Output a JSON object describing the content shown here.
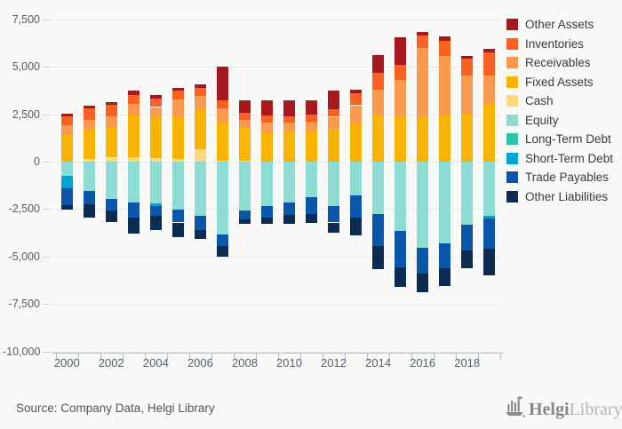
{
  "chart_data": {
    "type": "bar",
    "stacked": true,
    "title": "",
    "xlabel": "",
    "ylabel": "",
    "ylim": [
      -10000,
      7500
    ],
    "grid": true,
    "legend_position": "top-right",
    "x": [
      2000,
      2001,
      2002,
      2003,
      2004,
      2005,
      2006,
      2007,
      2008,
      2009,
      2010,
      2011,
      2012,
      2013,
      2014,
      2015,
      2016,
      2017,
      2018,
      2019
    ],
    "x_tick_labels": [
      "2000",
      "2002",
      "2004",
      "2006",
      "2008",
      "2010",
      "2012",
      "2014",
      "2016",
      "2018"
    ],
    "y_ticks": [
      {
        "label": "7,500",
        "value": 7500
      },
      {
        "label": "5,000",
        "value": 5000
      },
      {
        "label": "2,500",
        "value": 2500
      },
      {
        "label": "0",
        "value": 0
      },
      {
        "label": "-2,500",
        "value": -2500
      },
      {
        "label": "-5,000",
        "value": -5000
      },
      {
        "label": "-7,500",
        "value": -7500
      },
      {
        "label": "-10,000",
        "value": -10000
      }
    ],
    "series": [
      {
        "name": "Other Assets",
        "color": "#a5181d",
        "stack": "assets",
        "values": [
          150,
          150,
          150,
          230,
          180,
          155,
          185,
          1765,
          690,
          815,
          845,
          765,
          965,
          185,
          920,
          1430,
          230,
          220,
          155,
          185
        ]
      },
      {
        "name": "Inventories",
        "color": "#fa6121",
        "stack": "assets",
        "values": [
          455,
          605,
          605,
          485,
          455,
          445,
          430,
          415,
          385,
          370,
          340,
          355,
          415,
          645,
          920,
          825,
          620,
          780,
          905,
          1215
        ]
      },
      {
        "name": "Receivables",
        "color": "#fb9a4f",
        "stack": "assets",
        "values": [
          530,
          515,
          605,
          575,
          545,
          920,
          690,
          705,
          385,
          550,
          400,
          460,
          615,
          1010,
          1305,
          1900,
          3690,
          3160,
          1990,
          1510
        ]
      },
      {
        "name": "Fixed Assets",
        "color": "#f9b401",
        "stack": "assets",
        "values": [
          1395,
          1530,
          1560,
          2230,
          2155,
          2240,
          2100,
          2070,
          1750,
          1505,
          1655,
          1655,
          1750,
          1965,
          2470,
          2395,
          2320,
          2430,
          2535,
          3050
        ]
      },
      {
        "name": "Cash",
        "color": "#fbd77f",
        "stack": "assets",
        "values": [
          0,
          140,
          210,
          225,
          180,
          120,
          675,
          45,
          45,
          0,
          0,
          0,
          0,
          0,
          0,
          0,
          0,
          0,
          0,
          0
        ]
      },
      {
        "name": "Equity",
        "color": "#8edbd3",
        "stack": "liabilities",
        "values": [
          -730,
          -1540,
          -1950,
          -2135,
          -2180,
          -2515,
          -2855,
          -3820,
          -2590,
          -2330,
          -2130,
          -1870,
          -2330,
          -1795,
          -2745,
          -3670,
          -4550,
          -4290,
          -3345,
          -2875
        ]
      },
      {
        "name": "Long-Term Debt",
        "color": "#2dc3ac",
        "stack": "liabilities",
        "values": [
          0,
          0,
          0,
          0,
          0,
          0,
          0,
          0,
          0,
          0,
          0,
          0,
          0,
          0,
          0,
          0,
          0,
          0,
          0,
          0
        ]
      },
      {
        "name": "Short-Term Debt",
        "color": "#01a3d4",
        "stack": "liabilities",
        "values": [
          -690,
          0,
          0,
          0,
          -150,
          0,
          0,
          0,
          0,
          0,
          0,
          0,
          0,
          0,
          0,
          0,
          0,
          0,
          0,
          -140
        ]
      },
      {
        "name": "Trade Payables",
        "color": "#0a56ab",
        "stack": "liabilities",
        "values": [
          -880,
          -715,
          -640,
          -810,
          -535,
          -690,
          -735,
          -615,
          -460,
          -615,
          -660,
          -875,
          -875,
          -1150,
          -1690,
          -1890,
          -1360,
          -1315,
          -1330,
          -1555
        ]
      },
      {
        "name": "Other Liabilities",
        "color": "#0b2b51",
        "stack": "liabilities",
        "values": [
          -230,
          -685,
          -610,
          -870,
          -730,
          -765,
          -490,
          -565,
          -230,
          -340,
          -490,
          -505,
          -535,
          -920,
          -1225,
          -1035,
          -990,
          -960,
          -930,
          -1430
        ]
      }
    ]
  },
  "footer": {
    "source": "Source: Company Data, Helgi Library",
    "logo_primary": "Helgi",
    "logo_secondary": "Library."
  }
}
